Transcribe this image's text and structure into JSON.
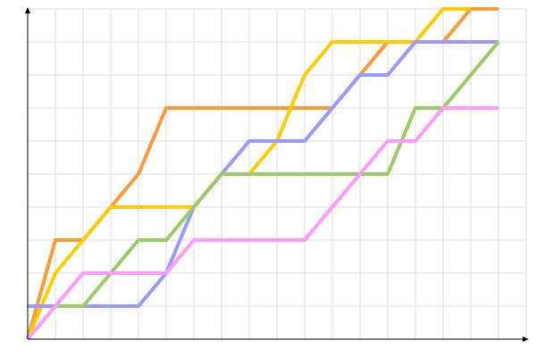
{
  "chart_data": {
    "type": "line",
    "title": "",
    "xlabel": "",
    "ylabel": "",
    "xlim": [
      0,
      18
    ],
    "ylim": [
      0,
      10
    ],
    "grid": true,
    "legend": "none",
    "series": [
      {
        "color": "#FF9933",
        "points": [
          [
            0,
            0
          ],
          [
            1,
            3
          ],
          [
            2,
            3
          ],
          [
            4,
            5
          ],
          [
            5,
            7
          ],
          [
            11,
            7
          ],
          [
            13,
            9
          ],
          [
            15,
            9
          ],
          [
            16,
            10
          ],
          [
            17,
            10
          ]
        ]
      },
      {
        "color": "#FFCC00",
        "points": [
          [
            0,
            0
          ],
          [
            1,
            2
          ],
          [
            3,
            4
          ],
          [
            6,
            4
          ],
          [
            7,
            5
          ],
          [
            8,
            5
          ],
          [
            9,
            6
          ],
          [
            10,
            8
          ],
          [
            11,
            9
          ],
          [
            14,
            9
          ],
          [
            15,
            10
          ],
          [
            16,
            10
          ]
        ]
      },
      {
        "color": "#9999FF",
        "points": [
          [
            0,
            1
          ],
          [
            4,
            1
          ],
          [
            5,
            2
          ],
          [
            6,
            4
          ],
          [
            8,
            6
          ],
          [
            10,
            6
          ],
          [
            12,
            8
          ],
          [
            13,
            8
          ],
          [
            14,
            9
          ],
          [
            17,
            9
          ]
        ]
      },
      {
        "color": "#99CC66",
        "points": [
          [
            0,
            0
          ],
          [
            1,
            1
          ],
          [
            2,
            1
          ],
          [
            4,
            3
          ],
          [
            5,
            3
          ],
          [
            7,
            5
          ],
          [
            13,
            5
          ],
          [
            14,
            7
          ],
          [
            15,
            7
          ],
          [
            17,
            9
          ]
        ]
      },
      {
        "color": "#FF99FF",
        "points": [
          [
            0,
            0
          ],
          [
            2,
            2
          ],
          [
            5,
            2
          ],
          [
            6,
            3
          ],
          [
            10,
            3
          ],
          [
            13,
            6
          ],
          [
            14,
            6
          ],
          [
            15,
            7
          ],
          [
            17,
            7
          ]
        ]
      }
    ]
  }
}
